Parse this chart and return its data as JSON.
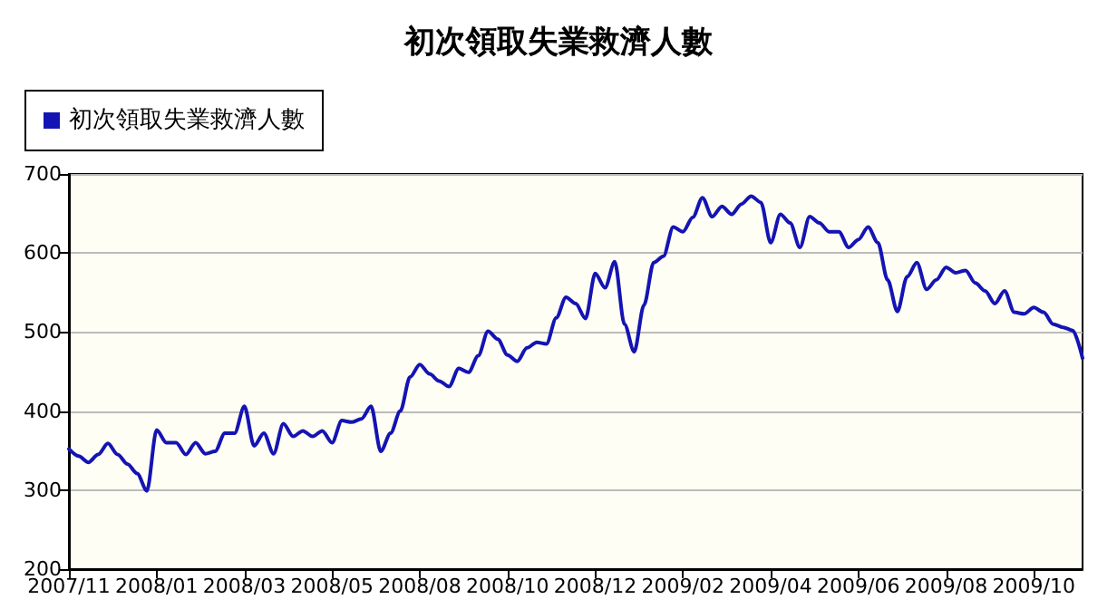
{
  "chart_data": {
    "type": "line",
    "title": "初次領取失業救濟人數",
    "categories": [
      "2007/11",
      null,
      null,
      null,
      null,
      null,
      null,
      null,
      null,
      "2008/01",
      null,
      null,
      null,
      null,
      null,
      null,
      null,
      null,
      "2008/03",
      null,
      null,
      null,
      null,
      null,
      null,
      null,
      null,
      "2008/05",
      null,
      null,
      null,
      null,
      null,
      null,
      null,
      null,
      "2008/08",
      null,
      null,
      null,
      null,
      null,
      null,
      null,
      null,
      "2008/10",
      null,
      null,
      null,
      null,
      null,
      null,
      null,
      null,
      "2008/12",
      null,
      null,
      null,
      null,
      null,
      null,
      null,
      null,
      "2009/02",
      null,
      null,
      null,
      null,
      null,
      null,
      null,
      null,
      "2009/04",
      null,
      null,
      null,
      null,
      null,
      null,
      null,
      null,
      "2009/06",
      null,
      null,
      null,
      null,
      null,
      null,
      null,
      null,
      "2009/08",
      null,
      null,
      null,
      null,
      null,
      null,
      null,
      null,
      "2009/10",
      null,
      null,
      null,
      null,
      null
    ],
    "series": [
      {
        "name": "初次領取失業救濟人數",
        "color": "#1414b4",
        "values": [
          352,
          343,
          335,
          345,
          359,
          345,
          333,
          321,
          299,
          376,
          360,
          360,
          345,
          360,
          346,
          349,
          372,
          372,
          406,
          356,
          372,
          346,
          384,
          368,
          375,
          368,
          375,
          360,
          388,
          386,
          390,
          406,
          349,
          372,
          400,
          443,
          459,
          447,
          438,
          431,
          454,
          449,
          470,
          501,
          491,
          471,
          463,
          480,
          487,
          485,
          518,
          544,
          536,
          517,
          574,
          556,
          589,
          510,
          475,
          534,
          588,
          596,
          633,
          627,
          645,
          670,
          646,
          659,
          649,
          662,
          672,
          664,
          613,
          649,
          638,
          607,
          646,
          638,
          627,
          627,
          607,
          617,
          633,
          613,
          566,
          526,
          570,
          588,
          554,
          566,
          582,
          575,
          578,
          562,
          552,
          536,
          552,
          525,
          523,
          531,
          525,
          510,
          506,
          502,
          467
        ]
      }
    ],
    "ylim": [
      200,
      700
    ],
    "yticks": [
      200,
      300,
      400,
      500,
      600,
      700
    ],
    "grid": "y",
    "legend": "top left",
    "marker": "none",
    "line_style": "solid"
  }
}
